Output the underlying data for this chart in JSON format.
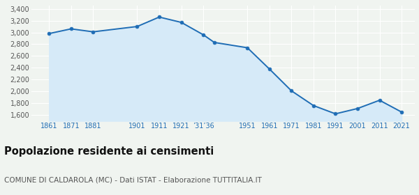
{
  "years": [
    1861,
    1871,
    1881,
    1901,
    1911,
    1921,
    1931,
    1936,
    1951,
    1961,
    1971,
    1981,
    1991,
    2001,
    2011,
    2021
  ],
  "population": [
    2980,
    3060,
    3010,
    3100,
    3260,
    3170,
    2960,
    2830,
    2740,
    2380,
    2010,
    1760,
    1620,
    1710,
    1850,
    1650
  ],
  "line_color": "#1f6db5",
  "fill_color": "#d6eaf8",
  "marker_color": "#1f6db5",
  "background_color": "#f0f4f0",
  "grid_color": "#ffffff",
  "ylim": [
    1500,
    3450
  ],
  "yticks": [
    1600,
    1800,
    2000,
    2200,
    2400,
    2600,
    2800,
    3000,
    3200,
    3400
  ],
  "x_tick_positions": [
    1861,
    1871,
    1881,
    1901,
    1911,
    1921,
    1931,
    1951,
    1961,
    1971,
    1981,
    1991,
    2001,
    2011,
    2021
  ],
  "x_tick_labels": [
    "1861",
    "1871",
    "1881",
    "1901",
    "1911",
    "1921",
    "’31’36",
    "1951",
    "1961",
    "1971",
    "1981",
    "1991",
    "2001",
    "2011",
    "2021"
  ],
  "title": "Popolazione residente ai censimenti",
  "title_fontsize": 10.5,
  "subtitle": "COMUNE DI CALDAROLA (MC) - Dati ISTAT - Elaborazione TUTTITALIA.IT",
  "subtitle_fontsize": 7.5,
  "xlim_left": 1853,
  "xlim_right": 2027
}
